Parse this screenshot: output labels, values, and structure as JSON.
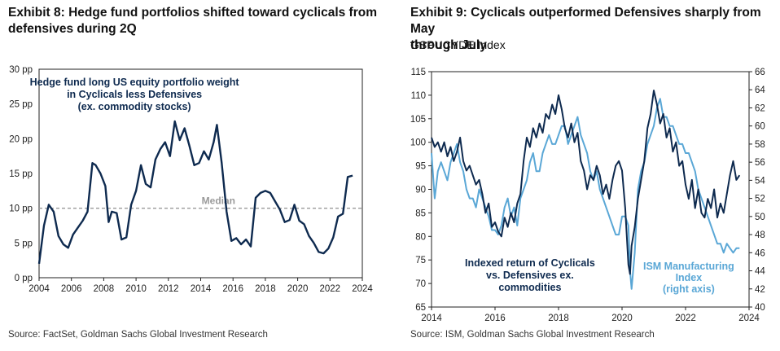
{
  "exhibit8": {
    "title_line1": "Exhibit 8: Hedge fund portfolios shifted toward cyclicals from",
    "title_line2": "defensives during 2Q",
    "source": "Source: FactSet, Goldman Sachs Global Investment Research",
    "chart_data": {
      "type": "line",
      "annotation": [
        "Hedge fund long US equity portfolio weight",
        "in Cyclicals less Defensives",
        "(ex. commodity stocks)"
      ],
      "median_label": "Median",
      "median_value": 10,
      "xlim": [
        2004,
        2024
      ],
      "ylim": [
        0,
        30
      ],
      "x_ticks": [
        "2004",
        "2006",
        "2008",
        "2010",
        "2012",
        "2014",
        "2016",
        "2018",
        "2020",
        "2022",
        "2024"
      ],
      "y_ticks": [
        "0 pp",
        "5 pp",
        "10 pp",
        "15 pp",
        "20 pp",
        "25 pp",
        "30 pp"
      ],
      "colors": {
        "line": "#0e2a4f",
        "median": "#9a9a9a",
        "annotation": "#0e2a4f"
      },
      "series": [
        {
          "x": [
            2004.0,
            2004.3,
            2004.6,
            2004.9,
            2005.2,
            2005.5,
            2005.8,
            2006.1,
            2006.4,
            2006.7,
            2007.0,
            2007.3,
            2007.5,
            2007.8,
            2008.1,
            2008.3,
            2008.5,
            2008.8,
            2009.1,
            2009.4,
            2009.7,
            2010.0,
            2010.3,
            2010.6,
            2010.9,
            2011.2,
            2011.5,
            2011.8,
            2012.1,
            2012.4,
            2012.7,
            2013.0,
            2013.3,
            2013.6,
            2013.9,
            2014.2,
            2014.5,
            2014.8,
            2015.0,
            2015.3,
            2015.6,
            2015.9,
            2016.2,
            2016.5,
            2016.8,
            2017.1,
            2017.4,
            2017.7,
            2018.0,
            2018.3,
            2018.6,
            2018.9,
            2019.2,
            2019.5,
            2019.8,
            2020.1,
            2020.4,
            2020.7,
            2021.0,
            2021.3,
            2021.6,
            2021.9,
            2022.2,
            2022.5,
            2022.8,
            2023.1,
            2023.4
          ],
          "y": [
            2.0,
            7.5,
            10.5,
            9.5,
            6.0,
            4.8,
            4.3,
            6.2,
            7.2,
            8.2,
            9.5,
            16.5,
            16.2,
            15.0,
            13.2,
            8.0,
            9.5,
            9.3,
            5.5,
            5.8,
            10.5,
            12.5,
            16.2,
            13.5,
            13.0,
            17.0,
            18.5,
            19.5,
            17.5,
            22.5,
            19.8,
            21.5,
            19.0,
            16.2,
            16.5,
            18.2,
            17.0,
            19.5,
            22.0,
            16.5,
            9.5,
            5.3,
            5.7,
            4.8,
            5.5,
            4.5,
            11.5,
            12.2,
            12.5,
            12.2,
            11.0,
            9.8,
            8.0,
            8.3,
            10.5,
            8.2,
            7.7,
            6.0,
            5.0,
            3.7,
            3.5,
            4.2,
            5.8,
            8.8,
            9.2,
            14.5,
            14.7
          ]
        }
      ]
    }
  },
  "exhibit9": {
    "title_line1": "Exhibit 9: Cyclicals outperformed Defensives sharply from May",
    "title_line2": "through July",
    "subtitle": "GSPUCYDE Index",
    "source": "Source: ISM, Goldman Sachs Global Investment Research",
    "chart_data": {
      "type": "line",
      "xlim": [
        2014,
        2024
      ],
      "ylim_left": [
        65,
        115
      ],
      "ylim_right": [
        40,
        66
      ],
      "x_ticks": [
        "2014",
        "2016",
        "2018",
        "2020",
        "2022",
        "2024"
      ],
      "y_ticks_left": [
        "65",
        "70",
        "75",
        "80",
        "85",
        "90",
        "95",
        "100",
        "105",
        "110",
        "115"
      ],
      "y_ticks_right": [
        "40",
        "42",
        "44",
        "46",
        "48",
        "50",
        "52",
        "54",
        "56",
        "58",
        "60",
        "62",
        "64",
        "66"
      ],
      "label_cyclicals": [
        "Indexed return of Cyclicals",
        "vs. Defensives ex.",
        "commodities"
      ],
      "label_ism": [
        "ISM Manufacturing",
        "Index",
        "(right axis)"
      ],
      "colors": {
        "cyclicals": "#0e2a4f",
        "ism": "#5aa7d6"
      },
      "series": [
        {
          "axis": "left",
          "x": [
            2014.0,
            2014.1,
            2014.2,
            2014.3,
            2014.4,
            2014.5,
            2014.6,
            2014.7,
            2014.8,
            2014.9,
            2015.0,
            2015.1,
            2015.2,
            2015.3,
            2015.4,
            2015.5,
            2015.6,
            2015.7,
            2015.8,
            2015.9,
            2016.0,
            2016.1,
            2016.2,
            2016.3,
            2016.4,
            2016.5,
            2016.6,
            2016.7,
            2016.8,
            2016.9,
            2017.0,
            2017.1,
            2017.2,
            2017.3,
            2017.4,
            2017.5,
            2017.6,
            2017.7,
            2017.8,
            2017.9,
            2018.0,
            2018.1,
            2018.2,
            2018.3,
            2018.4,
            2018.5,
            2018.6,
            2018.7,
            2018.8,
            2018.9,
            2019.0,
            2019.1,
            2019.2,
            2019.3,
            2019.4,
            2019.5,
            2019.6,
            2019.7,
            2019.8,
            2019.9,
            2020.0,
            2020.1,
            2020.2,
            2020.25,
            2020.3,
            2020.4,
            2020.5,
            2020.6,
            2020.7,
            2020.8,
            2020.9,
            2021.0,
            2021.1,
            2021.2,
            2021.3,
            2021.4,
            2021.5,
            2021.6,
            2021.7,
            2021.8,
            2021.9,
            2022.0,
            2022.1,
            2022.2,
            2022.3,
            2022.4,
            2022.5,
            2022.6,
            2022.7,
            2022.8,
            2022.9,
            2023.0,
            2023.1,
            2023.2,
            2023.3,
            2023.4,
            2023.5,
            2023.6,
            2023.7
          ],
          "y": [
            101,
            99,
            100,
            98,
            100,
            97,
            99,
            96,
            98,
            101,
            96,
            94,
            95,
            93,
            91,
            92,
            89,
            85,
            87,
            82,
            83,
            81,
            80,
            84,
            82,
            85,
            83,
            87,
            89,
            96,
            101,
            99,
            103,
            101,
            104,
            102,
            106,
            105,
            108,
            106,
            110,
            107,
            103,
            101,
            104,
            100,
            102,
            96,
            94,
            90,
            93,
            92,
            95,
            93,
            89,
            91,
            88,
            92,
            95,
            96,
            94,
            86,
            74,
            72,
            78,
            82,
            88,
            92,
            96,
            103,
            106,
            111,
            108,
            104,
            106,
            101,
            103,
            98,
            100,
            95,
            96,
            91,
            88,
            92,
            86,
            90,
            85,
            84,
            88,
            86,
            90,
            84,
            87,
            85,
            89,
            93,
            96,
            92,
            93
          ]
        },
        {
          "axis": "right",
          "x": [
            2014.0,
            2014.1,
            2014.2,
            2014.3,
            2014.4,
            2014.5,
            2014.6,
            2014.7,
            2014.8,
            2014.9,
            2015.0,
            2015.1,
            2015.2,
            2015.3,
            2015.4,
            2015.5,
            2015.6,
            2015.7,
            2015.8,
            2015.9,
            2016.0,
            2016.1,
            2016.2,
            2016.3,
            2016.4,
            2016.5,
            2016.6,
            2016.7,
            2016.8,
            2016.9,
            2017.0,
            2017.1,
            2017.2,
            2017.3,
            2017.4,
            2017.5,
            2017.6,
            2017.7,
            2017.8,
            2017.9,
            2018.0,
            2018.1,
            2018.2,
            2018.3,
            2018.4,
            2018.5,
            2018.6,
            2018.7,
            2018.8,
            2018.9,
            2019.0,
            2019.1,
            2019.2,
            2019.3,
            2019.4,
            2019.5,
            2019.6,
            2019.7,
            2019.8,
            2019.9,
            2020.0,
            2020.1,
            2020.2,
            2020.25,
            2020.3,
            2020.4,
            2020.5,
            2020.6,
            2020.7,
            2020.8,
            2020.9,
            2021.0,
            2021.1,
            2021.2,
            2021.3,
            2021.4,
            2021.5,
            2021.6,
            2021.7,
            2021.8,
            2021.9,
            2022.0,
            2022.1,
            2022.2,
            2022.3,
            2022.4,
            2022.5,
            2022.6,
            2022.7,
            2022.8,
            2022.9,
            2023.0,
            2023.1,
            2023.2,
            2023.3,
            2023.4,
            2023.5,
            2023.6,
            2023.7
          ],
          "y": [
            57,
            52,
            55,
            56,
            55,
            54,
            56,
            57,
            58,
            56,
            55,
            53,
            52,
            52,
            51,
            53,
            52,
            51,
            50,
            48.5,
            48.5,
            48,
            49,
            51,
            52,
            50,
            51,
            49,
            52,
            53,
            54,
            56,
            57,
            55,
            55,
            57,
            58,
            59,
            58,
            58,
            59,
            60,
            60,
            58,
            59,
            60,
            61,
            59,
            58,
            57,
            55,
            54,
            55,
            53,
            52,
            51,
            50,
            49,
            48,
            48,
            50,
            50,
            49,
            44,
            42,
            46,
            53,
            55,
            56,
            58,
            59,
            60,
            62,
            63,
            61,
            61,
            60,
            60,
            59,
            58,
            58,
            57,
            57,
            56,
            55,
            53,
            52,
            51,
            50,
            49,
            48,
            47,
            47,
            46,
            47,
            46.5,
            46,
            46.5,
            46.5
          ]
        }
      ]
    }
  }
}
